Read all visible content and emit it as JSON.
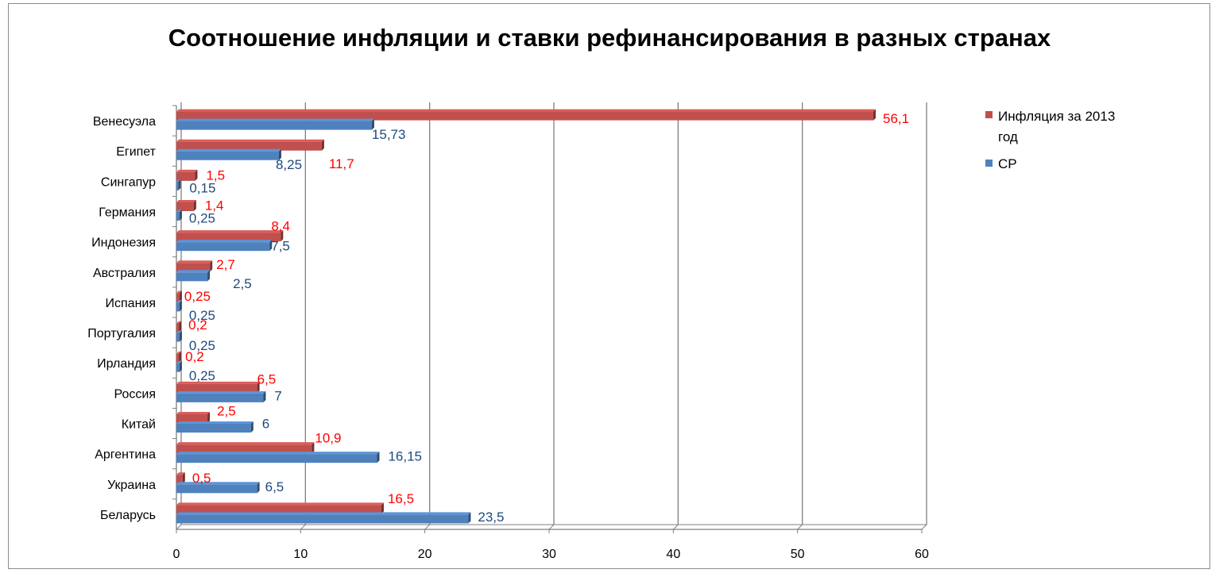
{
  "chart_data": {
    "type": "bar",
    "orientation": "horizontal",
    "title": "Соотношение инфляции и ставки рефинансирования в разных странах",
    "categories": [
      "Венесуэла",
      "Египет",
      "Сингапур",
      "Германия",
      "Индонезия",
      "Австралия",
      "Испания",
      "Португалия",
      "Ирландия",
      "Россия",
      "Китай",
      "Аргентина",
      "Украина",
      "Беларусь"
    ],
    "series": [
      {
        "name": "Инфляция  за 2013 год",
        "color": "#c0504d",
        "label_color": "#ff0000",
        "values": [
          56.1,
          11.7,
          1.5,
          1.4,
          8.4,
          2.7,
          0.25,
          0.2,
          0.2,
          6.5,
          2.5,
          10.9,
          0.5,
          16.5
        ],
        "labels": [
          "56,1",
          "11,7",
          "1,5",
          "1,4",
          "8,4",
          "2,7",
          "0,25",
          "0,2",
          "0,2",
          "6,5",
          "2,5",
          "10,9",
          "0,5",
          "16,5"
        ]
      },
      {
        "name": "СР",
        "color": "#4f81bd",
        "label_color": "#1f497d",
        "values": [
          15.73,
          8.25,
          0.15,
          0.25,
          7.5,
          2.5,
          0.25,
          0.25,
          0.25,
          7,
          6,
          16.15,
          6.5,
          23.5
        ],
        "labels": [
          "15,73",
          "8,25",
          "0,15",
          "0,25",
          "7,5",
          "2,5",
          "0,25",
          "0,25",
          "0,25",
          "7",
          "6",
          "16,15",
          "6,5",
          "23,5"
        ]
      }
    ],
    "xlim": [
      0,
      60
    ],
    "ticks": [
      "0",
      "10",
      "20",
      "30",
      "40",
      "50",
      "60"
    ],
    "grid": true,
    "legend_position": "right"
  }
}
